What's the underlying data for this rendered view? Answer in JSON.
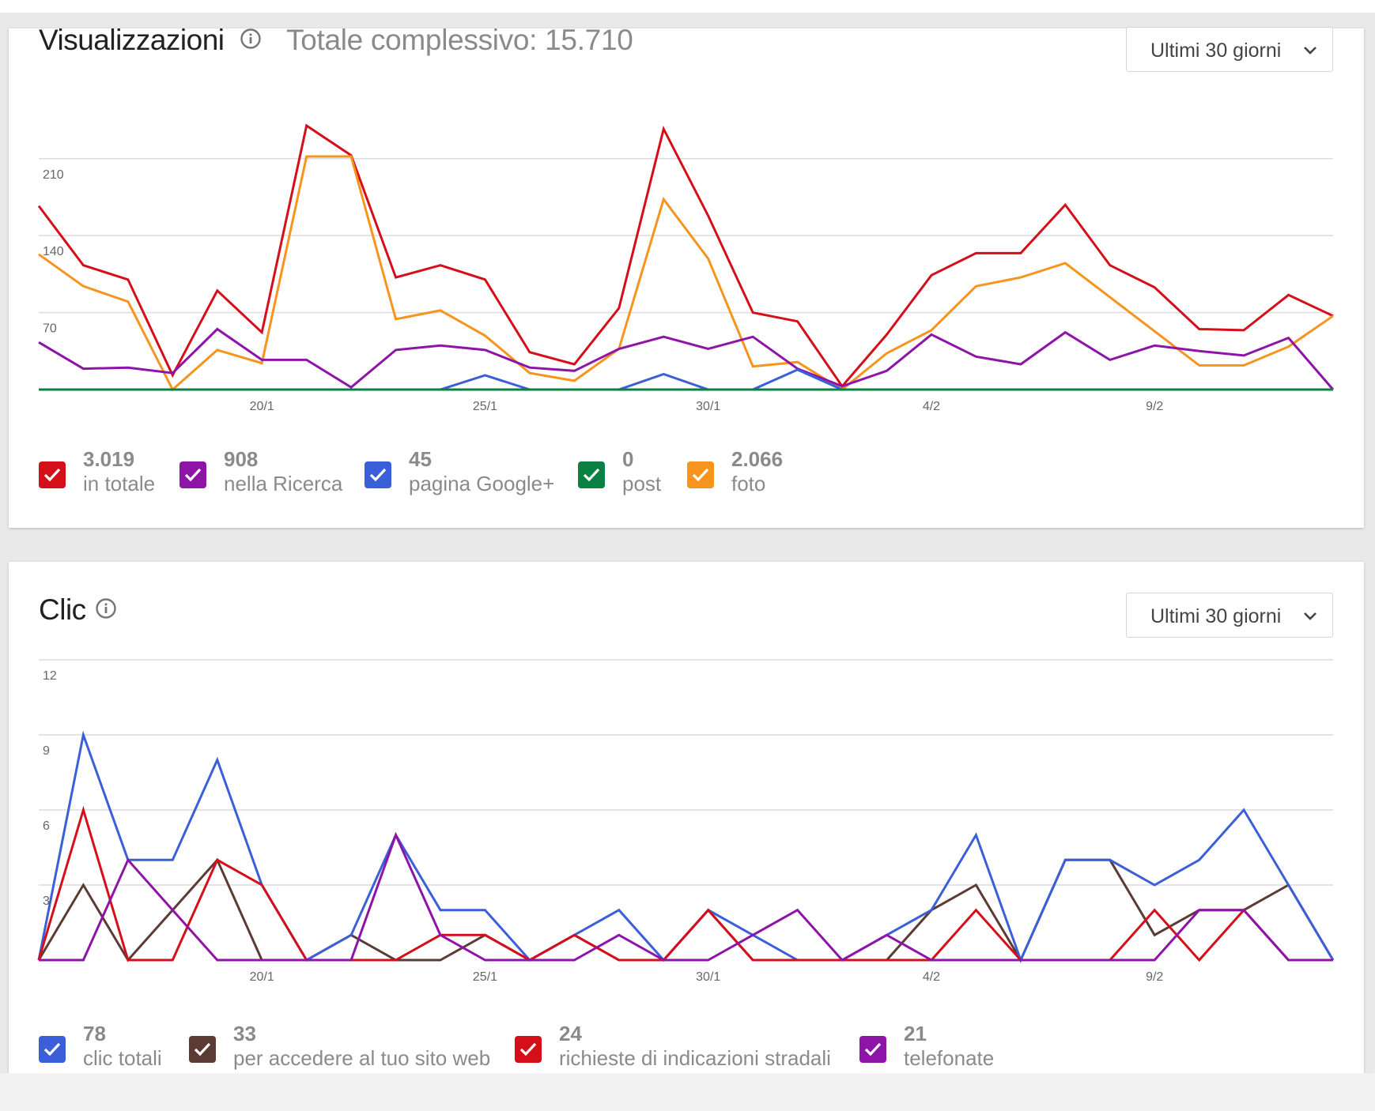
{
  "colors": {
    "red": "#d50f1a",
    "purple": "#8e14a8",
    "blue": "#3a5fd8",
    "green": "#0b8043",
    "orange": "#f7941d",
    "brown": "#5d3b35",
    "grid": "#dcdcdc",
    "axis_text": "#666666"
  },
  "views_card": {
    "title": "Visualizzazioni",
    "info_icon": "info-icon",
    "total_text": "Totale complessivo: 15.710",
    "dropdown_label": "Ultimi 30 giorni",
    "dropdown_icon": "chevron-down-icon",
    "legend": [
      {
        "value": "3.019",
        "label": "in totale",
        "color_key": "red",
        "checked": true
      },
      {
        "value": "908",
        "label": "nella Ricerca",
        "color_key": "purple",
        "checked": true
      },
      {
        "value": "45",
        "label": "pagina Google+",
        "color_key": "blue",
        "checked": true
      },
      {
        "value": "0",
        "label": "post",
        "color_key": "green",
        "checked": true
      },
      {
        "value": "2.066",
        "label": "foto",
        "color_key": "orange",
        "checked": true
      }
    ]
  },
  "clicks_card": {
    "title": "Clic",
    "info_icon": "info-icon",
    "dropdown_label": "Ultimi 30 giorni",
    "dropdown_icon": "chevron-down-icon",
    "legend": [
      {
        "value": "78",
        "label": "clic totali",
        "color_key": "blue",
        "checked": true
      },
      {
        "value": "33",
        "label": "per accedere al tuo sito web",
        "color_key": "brown",
        "checked": true
      },
      {
        "value": "24",
        "label": "richieste di indicazioni stradali",
        "color_key": "red",
        "checked": true
      },
      {
        "value": "21",
        "label": "telefonate",
        "color_key": "purple",
        "checked": true
      }
    ]
  },
  "chart_data": [
    {
      "type": "line",
      "title": "Visualizzazioni",
      "subtitle": "Totale complessivo: 15.710",
      "x_tick_labels": [
        "20/1",
        "25/1",
        "30/1",
        "4/2",
        "9/2"
      ],
      "x_tick_index": [
        5,
        10,
        15,
        20,
        25
      ],
      "y_ticks": [
        70,
        140,
        210
      ],
      "ylim": [
        0,
        240
      ],
      "grid": true,
      "legend_position": "bottom",
      "series": [
        {
          "name": "in totale",
          "color_key": "red",
          "values": [
            167,
            113,
            100,
            13,
            90,
            52,
            240,
            213,
            102,
            113,
            100,
            34,
            23,
            74,
            237,
            158,
            70,
            62,
            3,
            50,
            104,
            124,
            124,
            168,
            113,
            93,
            55,
            54,
            86,
            67
          ]
        },
        {
          "name": "foto",
          "color_key": "orange",
          "values": [
            123,
            94,
            80,
            0,
            36,
            24,
            212,
            212,
            64,
            72,
            49,
            15,
            8,
            37,
            173,
            119,
            21,
            25,
            0,
            33,
            54,
            94,
            102,
            115,
            84,
            53,
            22,
            22,
            39,
            67
          ]
        },
        {
          "name": "nella Ricerca",
          "color_key": "purple",
          "values": [
            43,
            19,
            20,
            15,
            55,
            27,
            27,
            2,
            36,
            40,
            36,
            20,
            17,
            37,
            48,
            37,
            48,
            19,
            3,
            17,
            50,
            30,
            23,
            52,
            27,
            40,
            35,
            31,
            47,
            0
          ]
        },
        {
          "name": "pagina Google+",
          "color_key": "blue",
          "values": [
            0,
            0,
            0,
            0,
            0,
            0,
            0,
            0,
            0,
            0,
            13,
            0,
            0,
            0,
            14,
            0,
            0,
            18,
            0,
            0,
            0,
            0,
            0,
            0,
            0,
            0,
            0,
            0,
            0,
            0
          ]
        },
        {
          "name": "post",
          "color_key": "green",
          "values": [
            0,
            0,
            0,
            0,
            0,
            0,
            0,
            0,
            0,
            0,
            0,
            0,
            0,
            0,
            0,
            0,
            0,
            0,
            0,
            0,
            0,
            0,
            0,
            0,
            0,
            0,
            0,
            0,
            0,
            0
          ]
        }
      ]
    },
    {
      "type": "line",
      "title": "Clic",
      "x_tick_labels": [
        "20/1",
        "25/1",
        "30/1",
        "4/2",
        "9/2"
      ],
      "x_tick_index": [
        5,
        10,
        15,
        20,
        25
      ],
      "y_ticks": [
        3,
        6,
        9,
        12
      ],
      "ylim": [
        0,
        12
      ],
      "grid": true,
      "legend_position": "bottom",
      "series": [
        {
          "name": "per accedere al tuo sito web",
          "color_key": "brown",
          "values": [
            0,
            3,
            0,
            2,
            4,
            0,
            0,
            1,
            0,
            0,
            1,
            0,
            1,
            0,
            0,
            2,
            0,
            0,
            0,
            0,
            2,
            3,
            0,
            4,
            4,
            1,
            2,
            2,
            3,
            0
          ]
        },
        {
          "name": "clic totali",
          "color_key": "blue",
          "values": [
            0,
            9,
            4,
            4,
            8,
            3,
            0,
            1,
            5,
            2,
            2,
            0,
            1,
            2,
            0,
            2,
            1,
            0,
            0,
            1,
            2,
            5,
            0,
            4,
            4,
            3,
            4,
            6,
            3,
            0
          ]
        },
        {
          "name": "richieste di indicazioni stradali",
          "color_key": "red",
          "values": [
            0,
            6,
            0,
            0,
            4,
            3,
            0,
            0,
            0,
            1,
            1,
            0,
            1,
            0,
            0,
            2,
            0,
            0,
            0,
            0,
            0,
            2,
            0,
            0,
            0,
            2,
            0,
            2,
            0,
            0
          ]
        },
        {
          "name": "telefonate",
          "color_key": "purple",
          "values": [
            0,
            0,
            4,
            2,
            0,
            0,
            0,
            0,
            5,
            1,
            0,
            0,
            0,
            1,
            0,
            0,
            1,
            2,
            0,
            1,
            0,
            0,
            0,
            0,
            0,
            0,
            2,
            2,
            0,
            0
          ]
        }
      ]
    }
  ]
}
